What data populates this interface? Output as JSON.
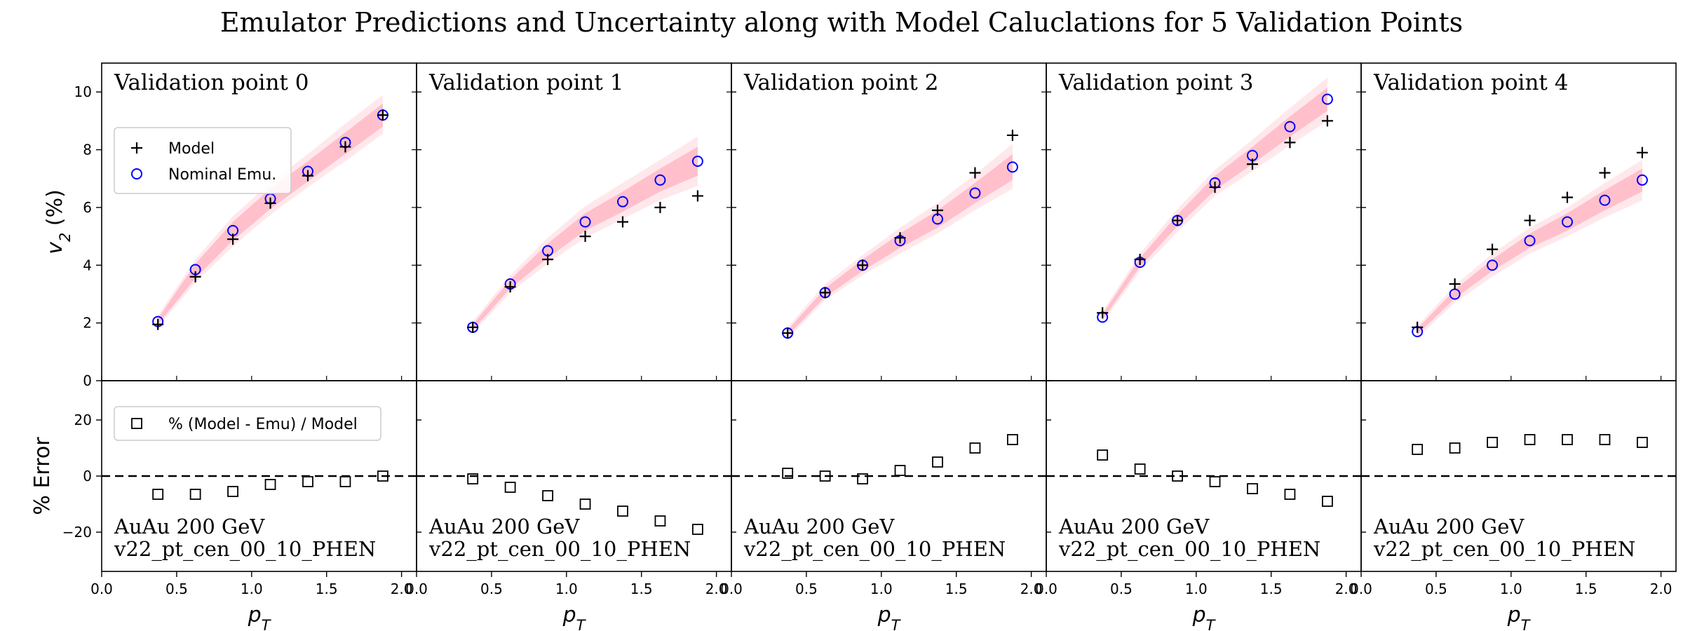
{
  "figure": {
    "title": "Emulator Predictions and Uncertainty along with Model Caluclations for 5 Validation Points",
    "top_ylabel": "v_2 (%)",
    "bottom_ylabel": "% Error",
    "xlabel": "p_T",
    "colors": {
      "band_outer": "#ffe8ec",
      "band_inner": "#ffc0cb",
      "emu_marker": "#0000ff",
      "model_marker": "#000000"
    }
  },
  "chart_data": [
    {
      "type": "scatter",
      "panel_title": "Validation point 0",
      "annotation": [
        "AuAu 200 GeV",
        "v22_pt_cen_00_10_PHEN"
      ],
      "x": [
        0.375,
        0.625,
        0.875,
        1.125,
        1.375,
        1.625,
        1.875
      ],
      "series": [
        {
          "name": "Model",
          "values": [
            1.95,
            3.6,
            4.9,
            6.15,
            7.1,
            8.1,
            9.2
          ]
        },
        {
          "name": "Nominal Emu.",
          "values": [
            2.05,
            3.85,
            5.2,
            6.3,
            7.25,
            8.25,
            9.2
          ]
        },
        {
          "name": "% (Model - Emu) / Model",
          "values": [
            -6.5,
            -6.5,
            -5.5,
            -3.0,
            -2.0,
            -2.0,
            0.0
          ]
        }
      ],
      "band_inner": {
        "low": [
          1.95,
          3.55,
          4.85,
          5.95,
          6.9,
          7.85,
          8.8
        ],
        "high": [
          2.15,
          4.05,
          5.5,
          6.65,
          7.6,
          8.6,
          9.6
        ]
      },
      "band_outer": {
        "low": [
          1.85,
          3.4,
          4.65,
          5.75,
          6.7,
          7.6,
          8.55
        ],
        "high": [
          2.25,
          4.2,
          5.7,
          6.85,
          7.85,
          8.9,
          9.9
        ]
      }
    },
    {
      "type": "scatter",
      "panel_title": "Validation point 1",
      "annotation": [
        "AuAu 200 GeV",
        "v22_pt_cen_00_10_PHEN"
      ],
      "x": [
        0.375,
        0.625,
        0.875,
        1.125,
        1.375,
        1.625,
        1.875
      ],
      "series": [
        {
          "name": "Model",
          "values": [
            1.85,
            3.25,
            4.2,
            5.0,
            5.5,
            6.0,
            6.4
          ]
        },
        {
          "name": "Nominal Emu.",
          "values": [
            1.85,
            3.35,
            4.5,
            5.5,
            6.2,
            6.95,
            7.6
          ]
        },
        {
          "name": "% (Model - Emu) / Model",
          "values": [
            -1.0,
            -4.0,
            -7.0,
            -10.0,
            -12.5,
            -16.0,
            -19.0
          ]
        }
      ],
      "band_inner": {
        "low": [
          1.75,
          3.2,
          4.25,
          5.2,
          5.85,
          6.55,
          7.1
        ],
        "high": [
          1.95,
          3.5,
          4.75,
          5.8,
          6.55,
          7.35,
          8.1
        ]
      },
      "band_outer": {
        "low": [
          1.65,
          3.05,
          4.05,
          4.95,
          5.6,
          6.25,
          6.75
        ],
        "high": [
          2.05,
          3.65,
          4.95,
          6.05,
          6.85,
          7.65,
          8.45
        ]
      }
    },
    {
      "type": "scatter",
      "panel_title": "Validation point 2",
      "annotation": [
        "AuAu 200 GeV",
        "v22_pt_cen_00_10_PHEN"
      ],
      "x": [
        0.375,
        0.625,
        0.875,
        1.125,
        1.375,
        1.625,
        1.875
      ],
      "series": [
        {
          "name": "Model",
          "values": [
            1.65,
            3.05,
            4.0,
            4.95,
            5.9,
            7.2,
            8.5
          ]
        },
        {
          "name": "Nominal Emu.",
          "values": [
            1.65,
            3.05,
            4.0,
            4.85,
            5.6,
            6.5,
            7.4
          ]
        },
        {
          "name": "% (Model - Emu) / Model",
          "values": [
            1.0,
            0.0,
            -1.0,
            2.0,
            5.0,
            10.0,
            13.0
          ]
        }
      ],
      "band_inner": {
        "low": [
          1.55,
          2.9,
          3.8,
          4.6,
          5.3,
          6.15,
          6.95
        ],
        "high": [
          1.75,
          3.2,
          4.2,
          5.1,
          5.9,
          6.85,
          7.85
        ]
      },
      "band_outer": {
        "low": [
          1.45,
          2.8,
          3.65,
          4.4,
          5.1,
          5.9,
          6.65
        ],
        "high": [
          1.85,
          3.35,
          4.35,
          5.3,
          6.15,
          7.15,
          8.2
        ]
      }
    },
    {
      "type": "scatter",
      "panel_title": "Validation point 3",
      "annotation": [
        "AuAu 200 GeV",
        "v22_pt_cen_00_10_PHEN"
      ],
      "x": [
        0.375,
        0.625,
        0.875,
        1.125,
        1.375,
        1.625,
        1.875
      ],
      "series": [
        {
          "name": "Model",
          "values": [
            2.35,
            4.2,
            5.55,
            6.7,
            7.5,
            8.25,
            9.0
          ]
        },
        {
          "name": "Nominal Emu.",
          "values": [
            2.2,
            4.1,
            5.55,
            6.85,
            7.8,
            8.8,
            9.75
          ]
        },
        {
          "name": "% (Model - Emu) / Model",
          "values": [
            7.5,
            2.5,
            0.0,
            -2.0,
            -4.5,
            -6.5,
            -9.0
          ]
        }
      ],
      "band_inner": {
        "low": [
          2.1,
          3.95,
          5.35,
          6.6,
          7.5,
          8.45,
          9.35
        ],
        "high": [
          2.3,
          4.25,
          5.75,
          7.1,
          8.1,
          9.15,
          10.15
        ]
      },
      "band_outer": {
        "low": [
          2.0,
          3.8,
          5.15,
          6.4,
          7.25,
          8.15,
          9.0
        ],
        "high": [
          2.4,
          4.4,
          5.95,
          7.3,
          8.35,
          9.45,
          10.5
        ]
      }
    },
    {
      "type": "scatter",
      "panel_title": "Validation point 4",
      "annotation": [
        "AuAu 200 GeV",
        "v22_pt_cen_00_10_PHEN"
      ],
      "x": [
        0.375,
        0.625,
        0.875,
        1.125,
        1.375,
        1.625,
        1.875
      ],
      "series": [
        {
          "name": "Model",
          "values": [
            1.85,
            3.35,
            4.55,
            5.55,
            6.35,
            7.2,
            7.9
          ]
        },
        {
          "name": "Nominal Emu.",
          "values": [
            1.7,
            3.0,
            4.0,
            4.85,
            5.5,
            6.25,
            6.95
          ]
        },
        {
          "name": "% (Model - Emu) / Model",
          "values": [
            9.5,
            10.0,
            12.0,
            13.0,
            13.0,
            13.0,
            12.0
          ]
        }
      ],
      "band_inner": {
        "low": [
          1.6,
          2.85,
          3.8,
          4.6,
          5.2,
          5.9,
          6.55
        ],
        "high": [
          1.8,
          3.15,
          4.2,
          5.1,
          5.8,
          6.6,
          7.35
        ]
      },
      "band_outer": {
        "low": [
          1.5,
          2.7,
          3.6,
          4.4,
          5.0,
          5.65,
          6.25
        ],
        "high": [
          1.9,
          3.3,
          4.4,
          5.3,
          6.0,
          6.85,
          7.65
        ]
      }
    }
  ],
  "axes": {
    "xlim": [
      0.0,
      2.1
    ],
    "xticks": [
      0.0,
      0.5,
      1.0,
      1.5,
      2.0
    ],
    "xtick_labels": [
      "0.0",
      "0.5",
      "1.0",
      "1.5",
      "2.0"
    ],
    "top_ylim": [
      0,
      11
    ],
    "top_yticks": [
      0,
      2,
      4,
      6,
      8,
      10
    ],
    "top_ytick_labels": [
      "0",
      "2",
      "4",
      "6",
      "8",
      "10"
    ],
    "bottom_ylim": [
      -34,
      34
    ],
    "bottom_yticks": [
      -20,
      0,
      20
    ],
    "bottom_ytick_labels": [
      "−20",
      "0",
      "20"
    ],
    "reference_line": 0
  },
  "legend_top": {
    "placement": "upper-left",
    "items": [
      {
        "label": "Model",
        "marker": "plus"
      },
      {
        "label": "Nominal Emu.",
        "marker": "circle"
      }
    ]
  },
  "legend_bottom": {
    "placement": "upper-left",
    "items": [
      {
        "label": "% (Model - Emu) / Model",
        "marker": "square"
      }
    ]
  }
}
